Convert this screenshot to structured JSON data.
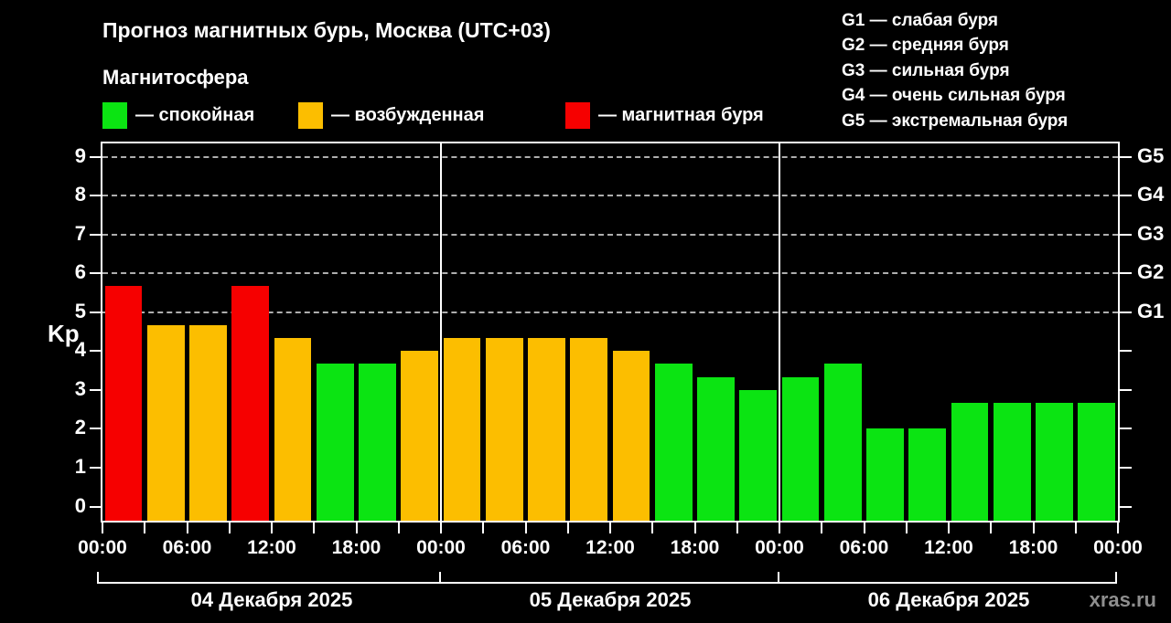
{
  "page": {
    "watermark": "xras.ru",
    "colors": {
      "background": "#000000",
      "text": "#ffffff",
      "watermark": "#8e8e8e",
      "grid": "#cdcdcd"
    }
  },
  "header": {
    "title": "Прогноз магнитных бурь, Москва (UTC+03)",
    "subtitle": "Магнитосфера",
    "legend": [
      {
        "swatch": "green",
        "color": "#0be412",
        "label": "— спокойная"
      },
      {
        "swatch": "orange",
        "color": "#fcbe00",
        "label": "— возбужденная"
      },
      {
        "swatch": "red",
        "color": "#f60000",
        "label": "— магнитная буря"
      }
    ]
  },
  "storm_scale": [
    "G1 — слабая буря",
    "G2 — средняя буря",
    "G3 — сильная буря",
    "G4 — очень сильная буря",
    "G5 — экстремальная буря"
  ],
  "chart_data": {
    "type": "bar",
    "title": "Прогноз магнитных бурь, Москва (UTC+03)",
    "ylabel": "Kp",
    "ylim": [
      0,
      9
    ],
    "yticks": [
      0,
      1,
      2,
      3,
      4,
      5,
      6,
      7,
      8,
      9
    ],
    "gridline_levels": [
      5,
      6,
      7,
      8,
      9
    ],
    "right_axis": [
      {
        "kp": 5,
        "label": "G1"
      },
      {
        "kp": 6,
        "label": "G2"
      },
      {
        "kp": 7,
        "label": "G3"
      },
      {
        "kp": 8,
        "label": "G4"
      },
      {
        "kp": 9,
        "label": "G5"
      }
    ],
    "x_tick_labels": [
      "00:00",
      "06:00",
      "12:00",
      "18:00",
      "00:00",
      "06:00",
      "12:00",
      "18:00",
      "00:00",
      "06:00",
      "12:00",
      "18:00",
      "00:00"
    ],
    "bar_interval_hours": 3,
    "colors": {
      "calm": "#0be412",
      "excited": "#fcbe00",
      "storm": "#f60000"
    },
    "days": [
      {
        "date": "04 Декабря 2025",
        "bars": [
          {
            "time": "00:00",
            "kp": 5.67,
            "level": "storm"
          },
          {
            "time": "03:00",
            "kp": 4.67,
            "level": "excited"
          },
          {
            "time": "06:00",
            "kp": 4.67,
            "level": "excited"
          },
          {
            "time": "09:00",
            "kp": 5.67,
            "level": "storm"
          },
          {
            "time": "12:00",
            "kp": 4.33,
            "level": "excited"
          },
          {
            "time": "15:00",
            "kp": 3.67,
            "level": "calm"
          },
          {
            "time": "18:00",
            "kp": 3.67,
            "level": "calm"
          },
          {
            "time": "21:00",
            "kp": 4.0,
            "level": "excited"
          }
        ]
      },
      {
        "date": "05 Декабря 2025",
        "bars": [
          {
            "time": "00:00",
            "kp": 4.33,
            "level": "excited"
          },
          {
            "time": "03:00",
            "kp": 4.33,
            "level": "excited"
          },
          {
            "time": "06:00",
            "kp": 4.33,
            "level": "excited"
          },
          {
            "time": "09:00",
            "kp": 4.33,
            "level": "excited"
          },
          {
            "time": "12:00",
            "kp": 4.0,
            "level": "excited"
          },
          {
            "time": "15:00",
            "kp": 3.67,
            "level": "calm"
          },
          {
            "time": "18:00",
            "kp": 3.33,
            "level": "calm"
          },
          {
            "time": "21:00",
            "kp": 3.0,
            "level": "calm"
          }
        ]
      },
      {
        "date": "06 Декабря 2025",
        "bars": [
          {
            "time": "00:00",
            "kp": 3.33,
            "level": "calm"
          },
          {
            "time": "03:00",
            "kp": 3.67,
            "level": "calm"
          },
          {
            "time": "06:00",
            "kp": 2.0,
            "level": "calm"
          },
          {
            "time": "09:00",
            "kp": 2.0,
            "level": "calm"
          },
          {
            "time": "12:00",
            "kp": 2.67,
            "level": "calm"
          },
          {
            "time": "15:00",
            "kp": 2.67,
            "level": "calm"
          },
          {
            "time": "18:00",
            "kp": 2.67,
            "level": "calm"
          },
          {
            "time": "21:00",
            "kp": 2.67,
            "level": "calm"
          }
        ]
      }
    ]
  }
}
